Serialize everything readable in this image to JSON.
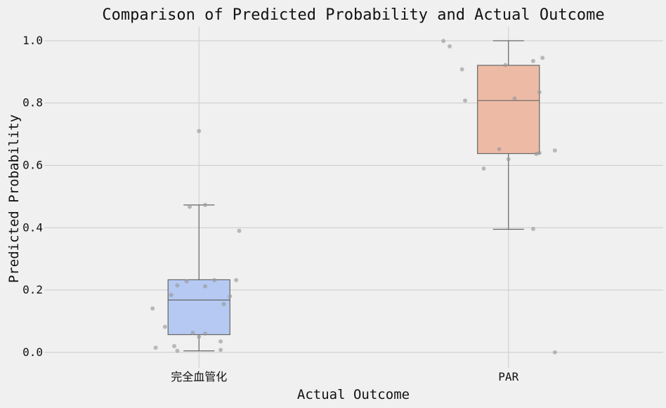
{
  "chart_data": {
    "type": "box",
    "title": "Comparison of Predicted Probability and Actual Outcome",
    "xlabel": "Actual Outcome",
    "ylabel": "Predicted Probability",
    "ylim": [
      -0.05,
      1.045
    ],
    "yticks": [
      0.0,
      0.2,
      0.4,
      0.6,
      0.8,
      1.0
    ],
    "ytick_labels": [
      "0.0",
      "0.2",
      "0.4",
      "0.6",
      "0.8",
      "1.0"
    ],
    "grid": true,
    "categories": [
      "完全血管化",
      "PAR"
    ],
    "boxes": [
      {
        "category": "完全血管化",
        "color": "#b5c9f2",
        "whisker_low": 0.005,
        "q1": 0.057,
        "median": 0.168,
        "q3": 0.233,
        "whisker_high": 0.473,
        "points": [
          {
            "offset": 0.0,
            "y": 0.71
          },
          {
            "offset": 0.02,
            "y": 0.473
          },
          {
            "offset": -0.03,
            "y": 0.467
          },
          {
            "offset": 0.13,
            "y": 0.39
          },
          {
            "offset": 0.12,
            "y": 0.232
          },
          {
            "offset": 0.05,
            "y": 0.232
          },
          {
            "offset": -0.04,
            "y": 0.228
          },
          {
            "offset": -0.07,
            "y": 0.215
          },
          {
            "offset": 0.02,
            "y": 0.212
          },
          {
            "offset": -0.09,
            "y": 0.184
          },
          {
            "offset": 0.1,
            "y": 0.18
          },
          {
            "offset": 0.08,
            "y": 0.155
          },
          {
            "offset": -0.15,
            "y": 0.141
          },
          {
            "offset": -0.11,
            "y": 0.082
          },
          {
            "offset": -0.02,
            "y": 0.063
          },
          {
            "offset": 0.02,
            "y": 0.06
          },
          {
            "offset": 0.0,
            "y": 0.05
          },
          {
            "offset": 0.07,
            "y": 0.035
          },
          {
            "offset": -0.08,
            "y": 0.02
          },
          {
            "offset": -0.14,
            "y": 0.015
          },
          {
            "offset": -0.07,
            "y": 0.005
          },
          {
            "offset": 0.07,
            "y": 0.008
          }
        ]
      },
      {
        "category": "PAR",
        "color": "#edbba5",
        "whisker_low": 0.395,
        "q1": 0.638,
        "median": 0.808,
        "q3": 0.921,
        "whisker_high": 1.0,
        "points": [
          {
            "offset": -0.21,
            "y": 0.999
          },
          {
            "offset": -0.19,
            "y": 0.982
          },
          {
            "offset": 0.11,
            "y": 0.945
          },
          {
            "offset": 0.08,
            "y": 0.935
          },
          {
            "offset": -0.01,
            "y": 0.922
          },
          {
            "offset": -0.15,
            "y": 0.908
          },
          {
            "offset": 0.1,
            "y": 0.835
          },
          {
            "offset": 0.02,
            "y": 0.815
          },
          {
            "offset": -0.14,
            "y": 0.808
          },
          {
            "offset": -0.03,
            "y": 0.652
          },
          {
            "offset": 0.15,
            "y": 0.648
          },
          {
            "offset": 0.1,
            "y": 0.64
          },
          {
            "offset": 0.09,
            "y": 0.637
          },
          {
            "offset": 0.0,
            "y": 0.62
          },
          {
            "offset": -0.08,
            "y": 0.59
          },
          {
            "offset": 0.08,
            "y": 0.396
          },
          {
            "offset": 0.15,
            "y": 0.0
          }
        ]
      }
    ]
  }
}
